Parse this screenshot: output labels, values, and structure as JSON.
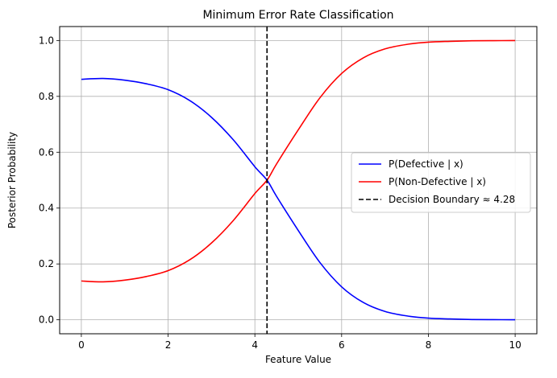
{
  "chart_data": {
    "type": "line",
    "title": "Minimum Error Rate Classification",
    "xlabel": "Feature Value",
    "ylabel": "Posterior Probability",
    "xlim": [
      -0.5,
      10.5
    ],
    "ylim": [
      -0.05,
      1.05
    ],
    "xticks": [
      0,
      2,
      4,
      6,
      8,
      10
    ],
    "xtick_labels": [
      "0",
      "2",
      "4",
      "6",
      "8",
      "10"
    ],
    "yticks": [
      0.0,
      0.2,
      0.4,
      0.6,
      0.8,
      1.0
    ],
    "ytick_labels": [
      "0.0",
      "0.2",
      "0.4",
      "0.6",
      "0.8",
      "1.0"
    ],
    "grid": true,
    "legend_position": "center-right",
    "x": [
      0,
      0.5,
      1,
      1.5,
      2,
      2.5,
      3,
      3.5,
      4,
      4.28,
      4.5,
      5,
      5.5,
      6,
      6.5,
      7,
      7.5,
      8,
      8.5,
      9,
      9.5,
      10
    ],
    "series": [
      {
        "name": "P(Defective | x)",
        "color": "#0000ff",
        "values": [
          0.861,
          0.864,
          0.858,
          0.845,
          0.824,
          0.785,
          0.725,
          0.645,
          0.548,
          0.5,
          0.442,
          0.32,
          0.205,
          0.118,
          0.062,
          0.03,
          0.014,
          0.006,
          0.003,
          0.001,
          0.0005,
          0.0002
        ]
      },
      {
        "name": "P(Non-Defective | x)",
        "color": "#ff0000",
        "values": [
          0.139,
          0.136,
          0.142,
          0.155,
          0.176,
          0.215,
          0.275,
          0.355,
          0.452,
          0.5,
          0.558,
          0.68,
          0.795,
          0.882,
          0.938,
          0.97,
          0.986,
          0.994,
          0.997,
          0.999,
          0.9995,
          0.9998
        ]
      }
    ],
    "vlines": [
      {
        "name": "Decision Boundary ≈ 4.28",
        "x": 4.28,
        "color": "#000000",
        "style": "dashed"
      }
    ]
  }
}
